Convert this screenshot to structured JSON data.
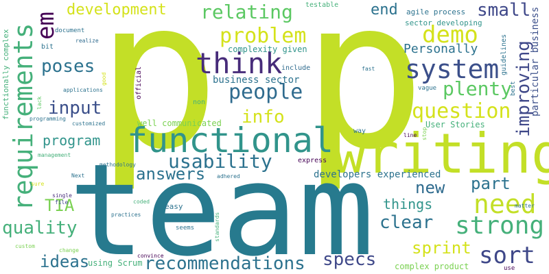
{
  "words": [
    "p",
    "team",
    "writing",
    "functional",
    "requirements",
    "think",
    "system",
    "problem",
    "relating",
    "development",
    "demo",
    "em",
    "small",
    "people",
    "need",
    "strong",
    "question",
    "input",
    "info",
    "usability",
    "answers",
    "sort",
    "specs",
    "recommendations",
    "quality",
    "ideas",
    "sprint",
    "clear",
    "things",
    "part",
    "new",
    "TIA",
    "program",
    "poses",
    "plenty",
    "improving",
    "end",
    "Personally",
    "business sector",
    "complexity given",
    "sector developing",
    "particular business",
    "agile process",
    "developers experienced",
    "User Stories",
    "well communicated",
    "complex product",
    "using Scrum",
    "functionally complex",
    "testable",
    "document",
    "realize",
    "bit",
    "include",
    "applications",
    "lack",
    "programming",
    "customized",
    "management",
    "methodology",
    "sure",
    "Next",
    "single",
    "file",
    "practices",
    "coded",
    "easy",
    "seems",
    "adhered",
    "standards",
    "custom",
    "change",
    "convince",
    "express",
    "way",
    "line",
    "stop",
    "fast",
    "vague",
    "non",
    "official",
    "good",
    "best",
    "guidelines",
    "matter",
    "use"
  ]
}
